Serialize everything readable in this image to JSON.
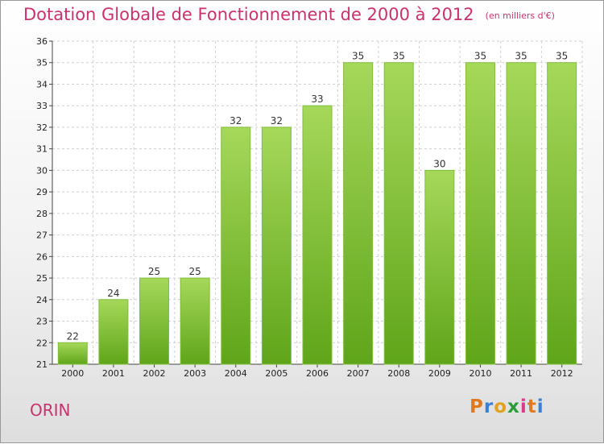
{
  "title": "Dotation Globale de Fonctionnement de 2000 à 2012",
  "unit": "(en milliers d'€)",
  "commune": "ORIN",
  "logo": {
    "letters": [
      "P",
      "r",
      "o",
      "x",
      "i",
      "t",
      "i"
    ],
    "colors": [
      "#e07a1f",
      "#3a7fd0",
      "#e0a21f",
      "#2a9d3a",
      "#d93a8a",
      "#e07a1f",
      "#3a7fd0"
    ]
  },
  "colors": {
    "bar_top": "#a6d85a",
    "bar_bottom": "#5fa51a",
    "accent": "#c8326e"
  },
  "chart_data": {
    "type": "bar",
    "title": "Dotation Globale de Fonctionnement de 2000 à 2012",
    "xlabel": "",
    "ylabel": "(en milliers d'€)",
    "ylim": [
      21,
      36
    ],
    "yticks": [
      21,
      22,
      23,
      24,
      25,
      26,
      27,
      28,
      29,
      30,
      31,
      32,
      33,
      34,
      35,
      36
    ],
    "categories": [
      "2000",
      "2001",
      "2002",
      "2003",
      "2004",
      "2005",
      "2006",
      "2007",
      "2008",
      "2009",
      "2010",
      "2011",
      "2012"
    ],
    "values": [
      22,
      24,
      25,
      25,
      32,
      32,
      33,
      35,
      35,
      30,
      35,
      35,
      35
    ],
    "grid": true
  }
}
